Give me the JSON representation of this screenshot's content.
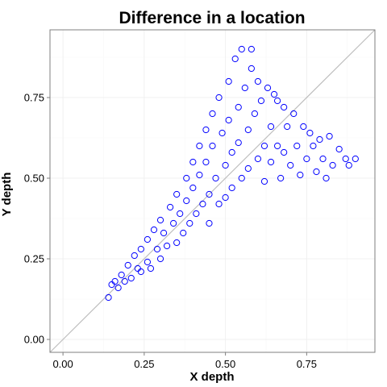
{
  "chart_data": {
    "type": "scatter",
    "title": "Difference in a location",
    "xlabel": "X depth",
    "ylabel": "Y depth",
    "xlim": [
      -0.04,
      0.96
    ],
    "ylim": [
      -0.04,
      0.96
    ],
    "x_ticks": [
      0.0,
      0.25,
      0.5,
      0.75
    ],
    "y_ticks": [
      0.0,
      0.25,
      0.5,
      0.75
    ],
    "x_tick_labels": [
      "0.00",
      "0.25",
      "0.50",
      "0.75"
    ],
    "y_tick_labels": [
      "0.00",
      "0.25",
      "0.50",
      "0.75"
    ],
    "grid": true,
    "reference_line": {
      "slope": 1,
      "intercept": 0,
      "color": "#bebebe"
    },
    "point_color": "#0000ff",
    "marker": "open-circle",
    "series": [
      {
        "points": [
          [
            0.14,
            0.13
          ],
          [
            0.15,
            0.17
          ],
          [
            0.16,
            0.18
          ],
          [
            0.17,
            0.16
          ],
          [
            0.18,
            0.2
          ],
          [
            0.19,
            0.18
          ],
          [
            0.2,
            0.23
          ],
          [
            0.21,
            0.19
          ],
          [
            0.22,
            0.26
          ],
          [
            0.23,
            0.22
          ],
          [
            0.24,
            0.28
          ],
          [
            0.24,
            0.21
          ],
          [
            0.26,
            0.31
          ],
          [
            0.26,
            0.24
          ],
          [
            0.27,
            0.22
          ],
          [
            0.28,
            0.34
          ],
          [
            0.29,
            0.28
          ],
          [
            0.3,
            0.25
          ],
          [
            0.3,
            0.37
          ],
          [
            0.31,
            0.33
          ],
          [
            0.32,
            0.29
          ],
          [
            0.33,
            0.41
          ],
          [
            0.34,
            0.36
          ],
          [
            0.35,
            0.3
          ],
          [
            0.35,
            0.45
          ],
          [
            0.36,
            0.39
          ],
          [
            0.37,
            0.33
          ],
          [
            0.38,
            0.5
          ],
          [
            0.38,
            0.43
          ],
          [
            0.39,
            0.36
          ],
          [
            0.4,
            0.55
          ],
          [
            0.4,
            0.47
          ],
          [
            0.41,
            0.39
          ],
          [
            0.42,
            0.6
          ],
          [
            0.42,
            0.51
          ],
          [
            0.43,
            0.42
          ],
          [
            0.44,
            0.65
          ],
          [
            0.44,
            0.55
          ],
          [
            0.45,
            0.45
          ],
          [
            0.45,
            0.36
          ],
          [
            0.46,
            0.7
          ],
          [
            0.46,
            0.6
          ],
          [
            0.47,
            0.5
          ],
          [
            0.48,
            0.42
          ],
          [
            0.48,
            0.75
          ],
          [
            0.49,
            0.64
          ],
          [
            0.5,
            0.54
          ],
          [
            0.5,
            0.44
          ],
          [
            0.51,
            0.8
          ],
          [
            0.51,
            0.68
          ],
          [
            0.52,
            0.58
          ],
          [
            0.52,
            0.47
          ],
          [
            0.53,
            0.87
          ],
          [
            0.54,
            0.72
          ],
          [
            0.54,
            0.61
          ],
          [
            0.55,
            0.5
          ],
          [
            0.55,
            0.9
          ],
          [
            0.56,
            0.78
          ],
          [
            0.57,
            0.65
          ],
          [
            0.57,
            0.53
          ],
          [
            0.58,
            0.9
          ],
          [
            0.58,
            0.84
          ],
          [
            0.59,
            0.7
          ],
          [
            0.6,
            0.56
          ],
          [
            0.6,
            0.8
          ],
          [
            0.61,
            0.74
          ],
          [
            0.62,
            0.6
          ],
          [
            0.62,
            0.49
          ],
          [
            0.63,
            0.78
          ],
          [
            0.64,
            0.66
          ],
          [
            0.64,
            0.55
          ],
          [
            0.65,
            0.76
          ],
          [
            0.66,
            0.74
          ],
          [
            0.66,
            0.6
          ],
          [
            0.67,
            0.5
          ],
          [
            0.68,
            0.72
          ],
          [
            0.68,
            0.58
          ],
          [
            0.69,
            0.66
          ],
          [
            0.7,
            0.54
          ],
          [
            0.71,
            0.7
          ],
          [
            0.72,
            0.6
          ],
          [
            0.73,
            0.51
          ],
          [
            0.74,
            0.66
          ],
          [
            0.75,
            0.56
          ],
          [
            0.76,
            0.64
          ],
          [
            0.77,
            0.6
          ],
          [
            0.78,
            0.52
          ],
          [
            0.79,
            0.62
          ],
          [
            0.8,
            0.56
          ],
          [
            0.81,
            0.5
          ],
          [
            0.82,
            0.63
          ],
          [
            0.83,
            0.54
          ],
          [
            0.85,
            0.59
          ],
          [
            0.87,
            0.56
          ],
          [
            0.88,
            0.54
          ],
          [
            0.9,
            0.56
          ]
        ]
      }
    ]
  }
}
